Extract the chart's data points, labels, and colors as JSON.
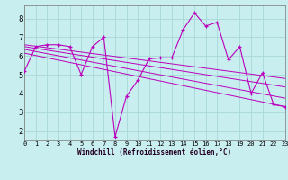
{
  "xlabel": "Windchill (Refroidissement éolien,°C)",
  "background_color": "#c8eef0",
  "line_color": "#bb00bb",
  "xlim": [
    0,
    23
  ],
  "ylim": [
    1.5,
    8.7
  ],
  "ytick_values": [
    2,
    3,
    4,
    5,
    6,
    7,
    8
  ],
  "grid_color": "#a8d8d8",
  "series": [
    {
      "x": [
        0,
        1,
        2,
        3,
        4,
        5,
        6,
        7,
        8,
        9,
        10,
        11,
        12,
        13,
        14,
        15,
        16,
        17,
        18,
        19,
        20,
        21,
        22,
        23
      ],
      "y": [
        5.2,
        6.5,
        6.6,
        6.6,
        6.5,
        5.0,
        6.5,
        7.0,
        1.7,
        3.85,
        4.7,
        5.85,
        5.9,
        5.9,
        7.4,
        8.3,
        7.6,
        7.8,
        5.8,
        6.5,
        4.0,
        5.1,
        3.4,
        3.3
      ]
    },
    {
      "x": [
        0,
        23
      ],
      "y": [
        6.6,
        4.8
      ]
    },
    {
      "x": [
        0,
        23
      ],
      "y": [
        6.5,
        4.35
      ]
    },
    {
      "x": [
        0,
        23
      ],
      "y": [
        6.35,
        3.75
      ]
    },
    {
      "x": [
        0,
        23
      ],
      "y": [
        6.15,
        3.3
      ]
    }
  ]
}
